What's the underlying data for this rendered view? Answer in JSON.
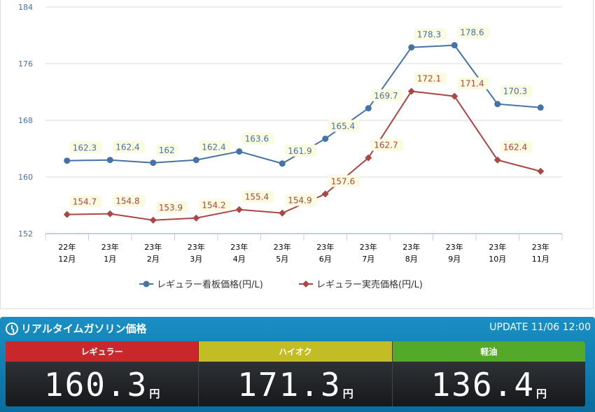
{
  "chart_data": {
    "type": "line",
    "categories": [
      [
        "22年",
        "12月"
      ],
      [
        "23年",
        "1月"
      ],
      [
        "23年",
        "2月"
      ],
      [
        "23年",
        "3月"
      ],
      [
        "23年",
        "4月"
      ],
      [
        "23年",
        "5月"
      ],
      [
        "23年",
        "6月"
      ],
      [
        "23年",
        "7月"
      ],
      [
        "23年",
        "8月"
      ],
      [
        "23年",
        "9月"
      ],
      [
        "23年",
        "10月"
      ],
      [
        "23年",
        "11月"
      ]
    ],
    "ylim": [
      152,
      184
    ],
    "yticks": [
      152,
      160,
      168,
      176,
      184
    ],
    "series": [
      {
        "name": "レギュラー看板価格(円/L)",
        "color": "#4572a7",
        "marker": "circle",
        "values": [
          162.3,
          162.4,
          162,
          162.4,
          163.6,
          161.9,
          165.4,
          169.7,
          178.3,
          178.6,
          170.3,
          169.8
        ],
        "labels": [
          "162.3",
          "162.4",
          "162",
          "162.4",
          "163.6",
          "161.9",
          "165.4",
          "169.7",
          "178.3",
          "178.6",
          "170.3",
          null
        ]
      },
      {
        "name": "レギュラー実売価格(円/L)",
        "color": "#aa4643",
        "marker": "diamond",
        "values": [
          154.7,
          154.8,
          153.9,
          154.2,
          155.4,
          154.9,
          157.6,
          162.7,
          172.1,
          171.4,
          162.4,
          160.8
        ],
        "labels": [
          "154.7",
          "154.8",
          "153.9",
          "154.2",
          "155.4",
          "154.9",
          "157.6",
          "162.7",
          "172.1",
          "171.4",
          "162.4",
          null
        ]
      }
    ],
    "legend": "bottom"
  },
  "panel": {
    "title": "リアルタイムガソリン価格",
    "update": "UPDATE 11/06 12:00",
    "prices": [
      {
        "label": "レギュラー",
        "value": "160.3",
        "unit": "円",
        "color": "#c8282c"
      },
      {
        "label": "ハイオク",
        "value": "171.3",
        "unit": "円",
        "color": "#c2bc25"
      },
      {
        "label": "軽油",
        "value": "136.4",
        "unit": "円",
        "color": "#55a92a"
      }
    ]
  }
}
